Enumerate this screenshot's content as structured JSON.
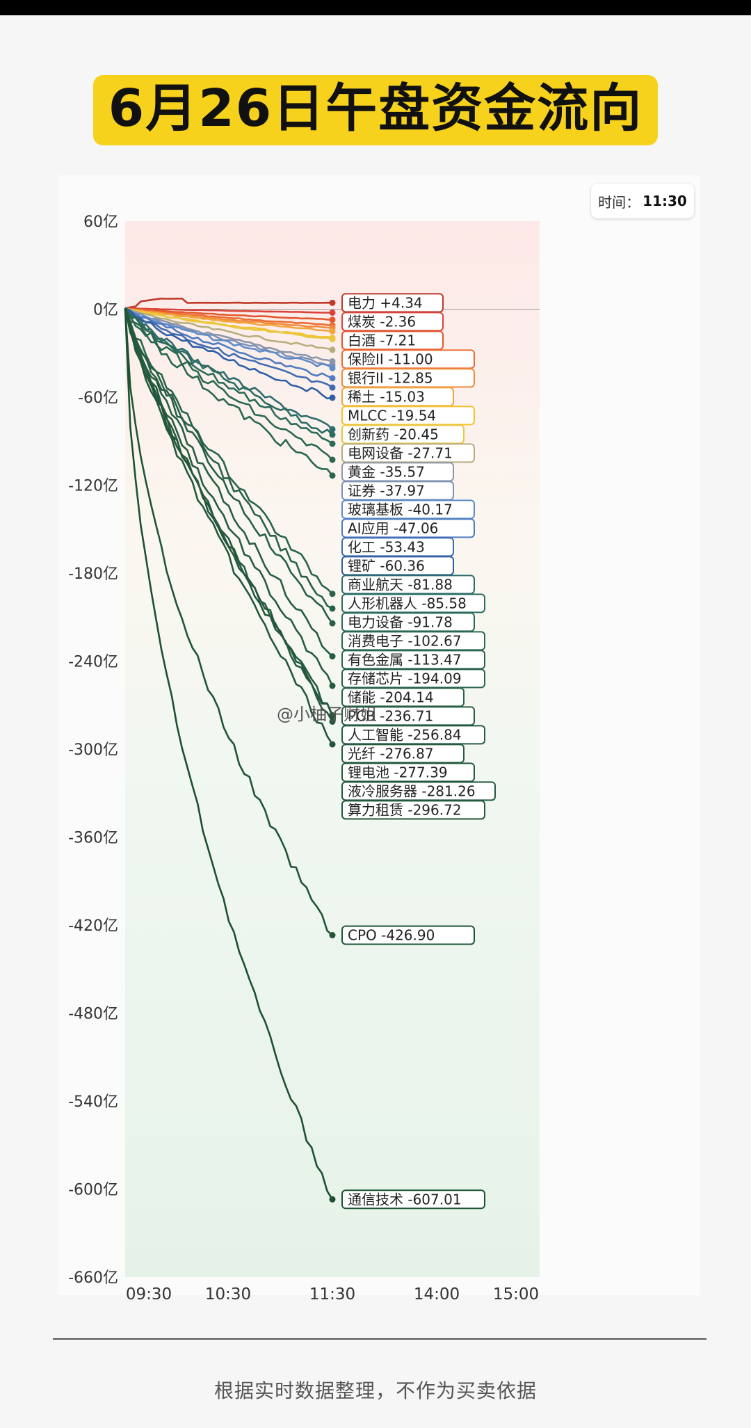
{
  "header": {
    "title": "6月26日午盘资金流向"
  },
  "time_box": {
    "label": "时间：",
    "value": "11:30"
  },
  "footer": {
    "note": "根据实时数据整理，不作为买卖依据"
  },
  "watermark": "@小柚子财姐",
  "chart_data": {
    "type": "line",
    "x_ticks": [
      "09:30",
      "10:30",
      "11:30",
      "14:00",
      "15:00"
    ],
    "y_ticks": [
      "60亿",
      "0亿",
      "-60亿",
      "-120亿",
      "-180亿",
      "-240亿",
      "-300亿",
      "-360亿",
      "-420亿",
      "-480亿",
      "-540亿",
      "-600亿",
      "-660亿"
    ],
    "ylim": [
      -660,
      60
    ],
    "unit": "亿",
    "series": [
      {
        "name": "电力",
        "value": "+4.34",
        "end": 4.34,
        "color": "#c0392b"
      },
      {
        "name": "煤炭",
        "value": "-2.36",
        "end": -2.36,
        "color": "#d9443a"
      },
      {
        "name": "白酒",
        "value": "-7.21",
        "end": -7.21,
        "color": "#e4572e"
      },
      {
        "name": "保险II",
        "value": "-11.00",
        "end": -11.0,
        "color": "#eb6d33"
      },
      {
        "name": "银行II",
        "value": "-12.85",
        "end": -12.85,
        "color": "#f08a3c"
      },
      {
        "name": "稀土",
        "value": "-15.03",
        "end": -15.03,
        "color": "#f2a53f"
      },
      {
        "name": "MLCC",
        "value": "-19.54",
        "end": -19.54,
        "color": "#f2c230"
      },
      {
        "name": "创新药",
        "value": "-20.45",
        "end": -20.45,
        "color": "#e8c840"
      },
      {
        "name": "电网设备",
        "value": "-27.71",
        "end": -27.71,
        "color": "#b7ae7e"
      },
      {
        "name": "黄金",
        "value": "-35.57",
        "end": -35.57,
        "color": "#8d97a8"
      },
      {
        "name": "证券",
        "value": "-37.97",
        "end": -37.97,
        "color": "#7f92b8"
      },
      {
        "name": "玻璃基板",
        "value": "-40.17",
        "end": -40.17,
        "color": "#5d8cc8"
      },
      {
        "name": "AI应用",
        "value": "-47.06",
        "end": -47.06,
        "color": "#4f7cc0"
      },
      {
        "name": "化工",
        "value": "-53.43",
        "end": -53.43,
        "color": "#3f6cb3"
      },
      {
        "name": "锂矿",
        "value": "-60.36",
        "end": -60.36,
        "color": "#2f5ea6"
      },
      {
        "name": "商业航天",
        "value": "-81.88",
        "end": -81.88,
        "color": "#2d6b6e"
      },
      {
        "name": "人形机器人",
        "value": "-85.58",
        "end": -85.58,
        "color": "#2b6c62"
      },
      {
        "name": "电力设备",
        "value": "-91.78",
        "end": -91.78,
        "color": "#2a6a58"
      },
      {
        "name": "消费电子",
        "value": "-102.67",
        "end": -102.67,
        "color": "#2a6852"
      },
      {
        "name": "有色金属",
        "value": "-113.47",
        "end": -113.47,
        "color": "#29664e"
      },
      {
        "name": "存储芯片",
        "value": "-194.09",
        "end": -194.09,
        "color": "#28634a"
      },
      {
        "name": "储能",
        "value": "-204.14",
        "end": -204.14,
        "color": "#276146"
      },
      {
        "name": "",
        "value": "",
        "end": -214.21,
        "color": "#275f44"
      },
      {
        "name": "PCB",
        "value": "-236.71",
        "end": -236.71,
        "color": "#265d42"
      },
      {
        "name": "人工智能",
        "value": "-256.84",
        "end": -256.84,
        "color": "#255b40"
      },
      {
        "name": "光纤",
        "value": "-276.87",
        "end": -276.87,
        "color": "#245a3e"
      },
      {
        "name": "锂电池",
        "value": "-277.39",
        "end": -277.39,
        "color": "#24593d"
      },
      {
        "name": "液冷服务器",
        "value": "-281.26",
        "end": -281.26,
        "color": "#23583c"
      },
      {
        "name": "算力租赁",
        "value": "-296.72",
        "end": -296.72,
        "color": "#22573b"
      },
      {
        "name": "CPO",
        "value": "-426.90",
        "end": -426.9,
        "color": "#1f5535"
      },
      {
        "name": "通信技术",
        "value": "-607.01",
        "end": -607.01,
        "color": "#1b5131"
      }
    ]
  }
}
